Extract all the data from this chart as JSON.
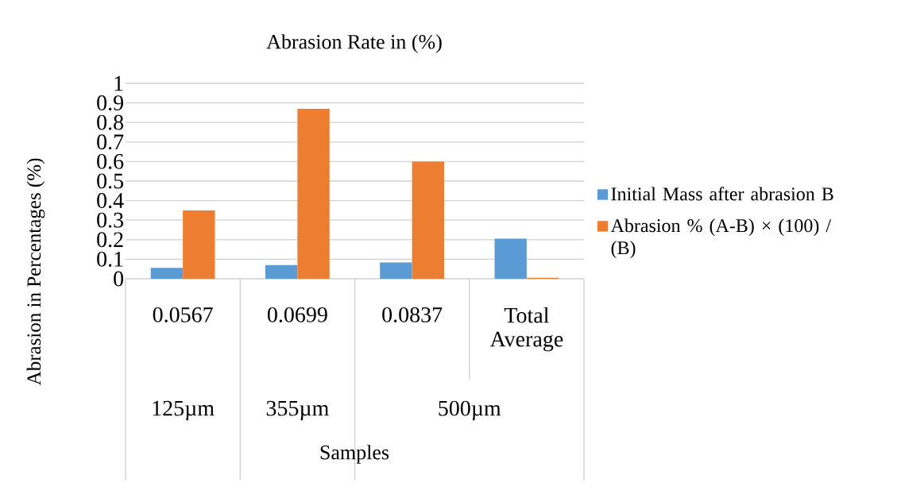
{
  "chart_data": {
    "type": "bar",
    "title": "Abrasion Rate in (%)",
    "xlabel": "Samples",
    "ylabel": "Abrasion in  Percentages (%)",
    "categories": [
      "0.0567",
      "0.0699",
      "0.0837",
      "Total Average"
    ],
    "series": [
      {
        "name": "Initial  Mass after abrasion B",
        "color": "#5b9bd5",
        "values": [
          0.056,
          0.07,
          0.083,
          0.205
        ]
      },
      {
        "name": "Abrasion % (A-B)  × (100) / (B)",
        "color": "#ed7d31",
        "values": [
          0.35,
          0.87,
          0.6,
          0.005
        ]
      }
    ],
    "ylim": [
      0,
      1
    ],
    "yticks": [
      0,
      0.1,
      0.2,
      0.3,
      0.4,
      0.5,
      0.6,
      0.7,
      0.8,
      0.9,
      1
    ],
    "grid": "y",
    "legend": "right",
    "annotations": [
      "125µm",
      "355µm",
      "500µm"
    ]
  }
}
